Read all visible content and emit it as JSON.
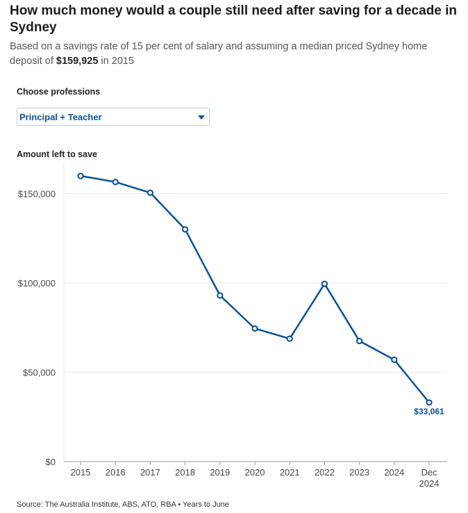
{
  "header": {
    "title": "How much money would a couple still need after saving for a decade in Sydney",
    "subtitle_pre": "Based on a savings rate of 15 per cent of salary and assuming a median priced Sydney home deposit of ",
    "subtitle_bold": "$159,925",
    "subtitle_post": " in 2015"
  },
  "controls": {
    "label": "Choose professions",
    "selected": "Principal + Teacher",
    "caret_icon": "chevron-down-icon"
  },
  "source": "Source: The Australia Institute, ABS, ATO, RBA • Years to June",
  "colors": {
    "line": "#0a4f94",
    "grid": "#e6e6e6",
    "axis": "#999999"
  },
  "chart_data": {
    "type": "line",
    "title": "",
    "ylabel": "Amount left to save",
    "xlabel": "",
    "categories": [
      "2015",
      "2016",
      "2017",
      "2018",
      "2019",
      "2020",
      "2021",
      "2022",
      "2023",
      "2024",
      "Dec 2024"
    ],
    "series": [
      {
        "values": [
          159925,
          156500,
          150500,
          130000,
          93000,
          74500,
          68800,
          99500,
          67500,
          57000,
          33061
        ]
      }
    ],
    "ylim": [
      0,
      165000
    ],
    "yticks": [
      0,
      50000,
      100000,
      150000
    ],
    "ytick_labels": [
      "$0",
      "$50,000",
      "$100,000",
      "$150,000"
    ],
    "xtick_labels": [
      [
        "2015"
      ],
      [
        "2016"
      ],
      [
        "2017"
      ],
      [
        "2018"
      ],
      [
        "2019"
      ],
      [
        "2020"
      ],
      [
        "2021"
      ],
      [
        "2022"
      ],
      [
        "2023"
      ],
      [
        "2024"
      ],
      [
        "Dec",
        "2024"
      ]
    ],
    "end_label": "$33,061",
    "grid": true,
    "legend": "none"
  }
}
